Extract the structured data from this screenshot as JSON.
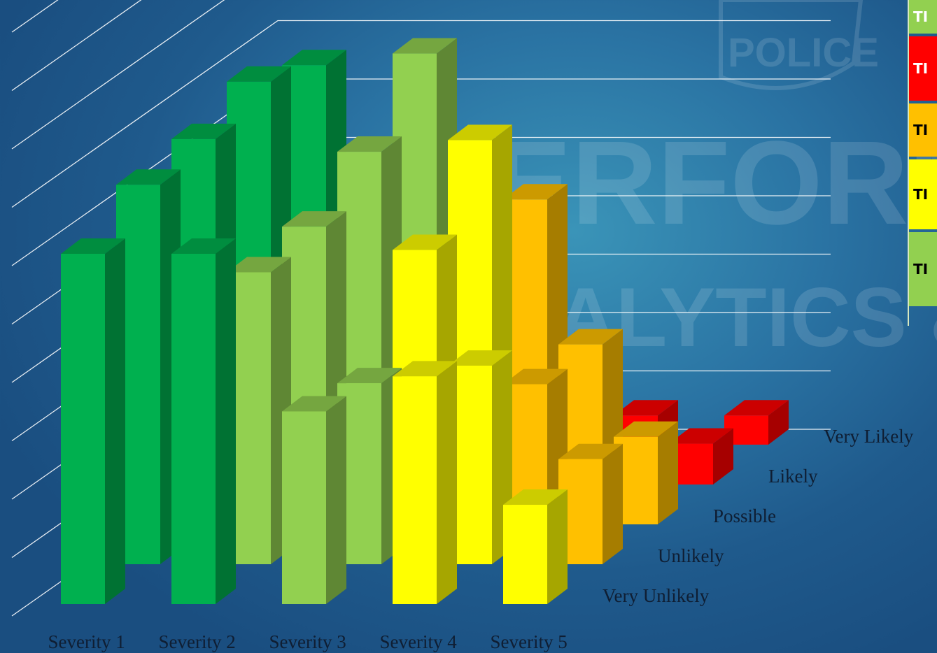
{
  "watermark": {
    "badge": "POLICE",
    "line1": "PERFORM",
    "line2": "ANALYTICS & RES"
  },
  "chart_data": {
    "type": "bar3d",
    "categories": [
      "Severity 1",
      "Severity 2",
      "Severity 3",
      "Severity 4",
      "Severity 5"
    ],
    "depth_categories": [
      "Very Unlikely",
      "Unlikely",
      "Possible",
      "Likely",
      "Very Likely"
    ],
    "grid": true,
    "legend": "right",
    "series": [
      {
        "name": "Very Unlikely",
        "values": [
          6,
          6,
          3.3,
          3.9,
          1.7
        ],
        "colors": [
          "#00b04f",
          "#00b04f",
          "#92d050",
          "#ffff00",
          "#ffff00"
        ]
      },
      {
        "name": "Unlikely",
        "values": [
          6.5,
          5,
          3.1,
          3.4,
          1.8
        ],
        "colors": [
          "#00b04f",
          "#92d050",
          "#92d050",
          "#ffff00",
          "#ffc000"
        ]
      },
      {
        "name": "Possible",
        "values": [
          6.6,
          5.1,
          4.7,
          2.4,
          1.5
        ],
        "colors": [
          "#00b04f",
          "#92d050",
          "#ffff00",
          "#ffc000",
          "#ffc000"
        ]
      },
      {
        "name": "Likely",
        "values": [
          6.9,
          5.7,
          5.9,
          2.4,
          0.7
        ],
        "colors": [
          "#00b04f",
          "#92d050",
          "#ffff00",
          "#ffc000",
          "#ff0000"
        ]
      },
      {
        "name": "Very Likely",
        "values": [
          6.5,
          6.7,
          4.2,
          0.5,
          0.5
        ],
        "colors": [
          "#00b04f",
          "#92d050",
          "#ffc000",
          "#ff0000",
          "#ff0000"
        ]
      }
    ]
  },
  "legend": [
    {
      "label": "TI",
      "bg": "#92d050",
      "fg": "#ffffff"
    },
    {
      "label": "TI",
      "bg": "#ff0000",
      "fg": "#ffffff"
    },
    {
      "label": "TI",
      "bg": "#ffc000",
      "fg": "#000000"
    },
    {
      "label": "TI",
      "bg": "#ffff00",
      "fg": "#000000"
    },
    {
      "label": "TI",
      "bg": "#92d050",
      "fg": "#000000"
    }
  ]
}
